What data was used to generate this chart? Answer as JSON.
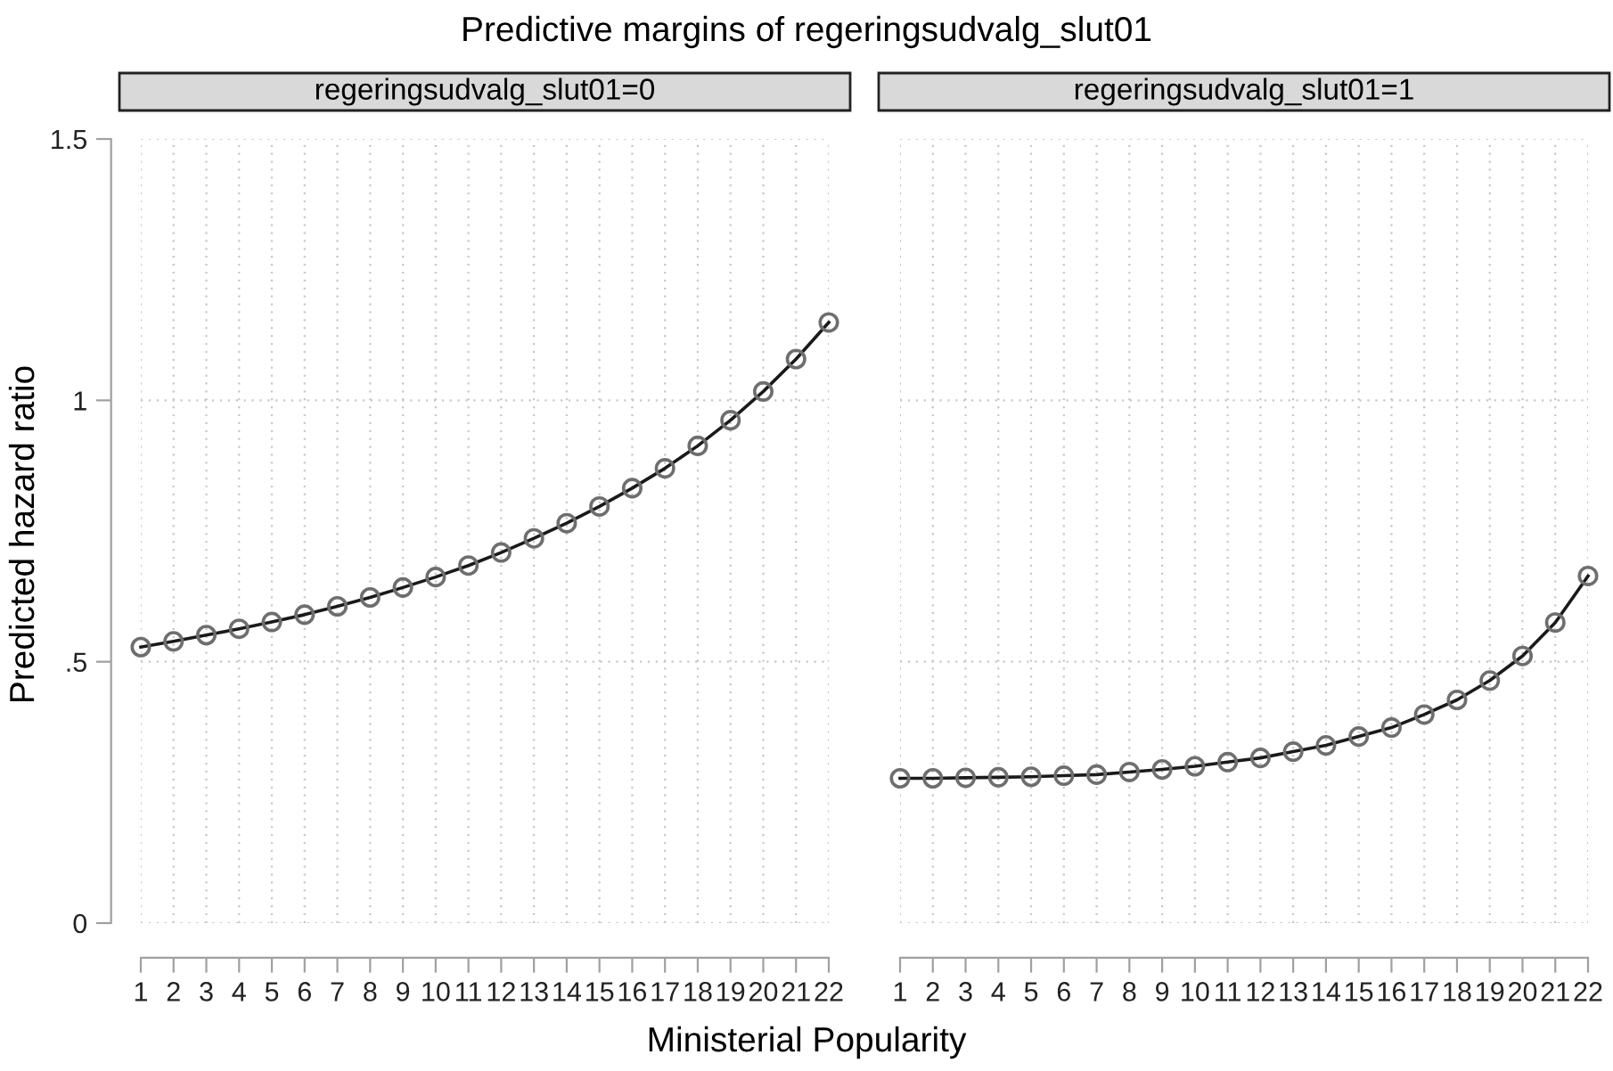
{
  "chart_data": [
    {
      "type": "line",
      "title": "Predictive margins of regeringsudvalg_slut01",
      "subtitle": "regeringsudvalg_slut01=0",
      "xlabel": "Ministerial Popularity",
      "ylabel": "Predicted hazard ratio",
      "x": [
        1,
        2,
        3,
        4,
        5,
        6,
        7,
        8,
        9,
        10,
        11,
        12,
        13,
        14,
        15,
        16,
        17,
        18,
        19,
        20,
        21,
        22
      ],
      "series": [
        {
          "color": "#1a1a1a",
          "values": [
            0.528,
            0.539,
            0.551,
            0.563,
            0.576,
            0.59,
            0.606,
            0.623,
            0.642,
            0.662,
            0.684,
            0.709,
            0.736,
            0.765,
            0.797,
            0.832,
            0.87,
            0.913,
            0.962,
            1.017,
            1.079,
            1.149
          ]
        }
      ],
      "xlim": [
        1,
        22
      ],
      "xticks": [
        1,
        2,
        3,
        4,
        5,
        6,
        7,
        8,
        9,
        10,
        11,
        12,
        13,
        14,
        15,
        16,
        17,
        18,
        19,
        20,
        21,
        22
      ],
      "ylim": [
        0,
        1.5
      ],
      "yticks": [
        0,
        {
          "value": 0.5,
          "label": ".5"
        },
        1,
        1.5
      ],
      "grid": true,
      "marker": "circle"
    },
    {
      "type": "line",
      "subtitle": "regeringsudvalg_slut01=1",
      "x": [
        1,
        2,
        3,
        4,
        5,
        6,
        7,
        8,
        9,
        10,
        11,
        12,
        13,
        14,
        15,
        16,
        17,
        18,
        19,
        20,
        21,
        22
      ],
      "series": [
        {
          "color": "#1a1a1a",
          "values": [
            0.277,
            0.277,
            0.278,
            0.279,
            0.28,
            0.282,
            0.284,
            0.289,
            0.294,
            0.3,
            0.308,
            0.316,
            0.328,
            0.34,
            0.357,
            0.374,
            0.399,
            0.427,
            0.464,
            0.511,
            0.575,
            0.664
          ]
        }
      ],
      "xlim": [
        1,
        22
      ],
      "xticks": [
        1,
        2,
        3,
        4,
        5,
        6,
        7,
        8,
        9,
        10,
        11,
        12,
        13,
        14,
        15,
        16,
        17,
        18,
        19,
        20,
        21,
        22
      ],
      "ylim": [
        0,
        1.5
      ],
      "yticks": [
        {
          "value": 0,
          "label": null
        },
        {
          "value": 0.5,
          "label": null
        },
        {
          "value": 1,
          "label": null
        },
        {
          "value": 1.5,
          "label": null
        }
      ],
      "grid": true,
      "marker": "circle",
      "tick_labels": "x"
    }
  ]
}
